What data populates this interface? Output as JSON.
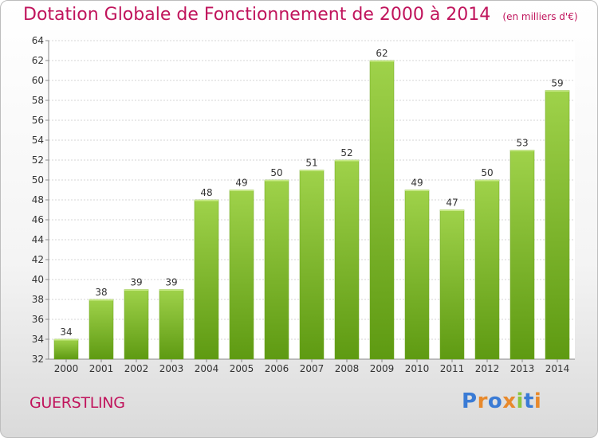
{
  "header": {
    "title": "Dotation Globale de Fonctionnement de 2000 à 2014",
    "unit": "(en milliers d'€)"
  },
  "footer": {
    "commune": "GUERSTLING",
    "logo": "Proxiti"
  },
  "colors": {
    "accent": "#c0145c",
    "bar_top": "#9fd24a",
    "bar_bottom": "#5e9a12"
  },
  "chart_data": {
    "type": "bar",
    "title": "Dotation Globale de Fonctionnement de 2000 à 2014",
    "subtitle": "(en milliers d'€)",
    "categories": [
      "2000",
      "2001",
      "2002",
      "2003",
      "2004",
      "2005",
      "2006",
      "2007",
      "2008",
      "2009",
      "2010",
      "2011",
      "2012",
      "2013",
      "2014"
    ],
    "values": [
      34,
      38,
      39,
      39,
      48,
      49,
      50,
      51,
      52,
      62,
      49,
      47,
      50,
      53,
      59
    ],
    "ylim": [
      32,
      64
    ],
    "yticks": [
      32,
      34,
      36,
      38,
      40,
      42,
      44,
      46,
      48,
      50,
      52,
      54,
      56,
      58,
      60,
      62,
      64
    ],
    "grid": true,
    "xlabel": "",
    "ylabel": ""
  }
}
